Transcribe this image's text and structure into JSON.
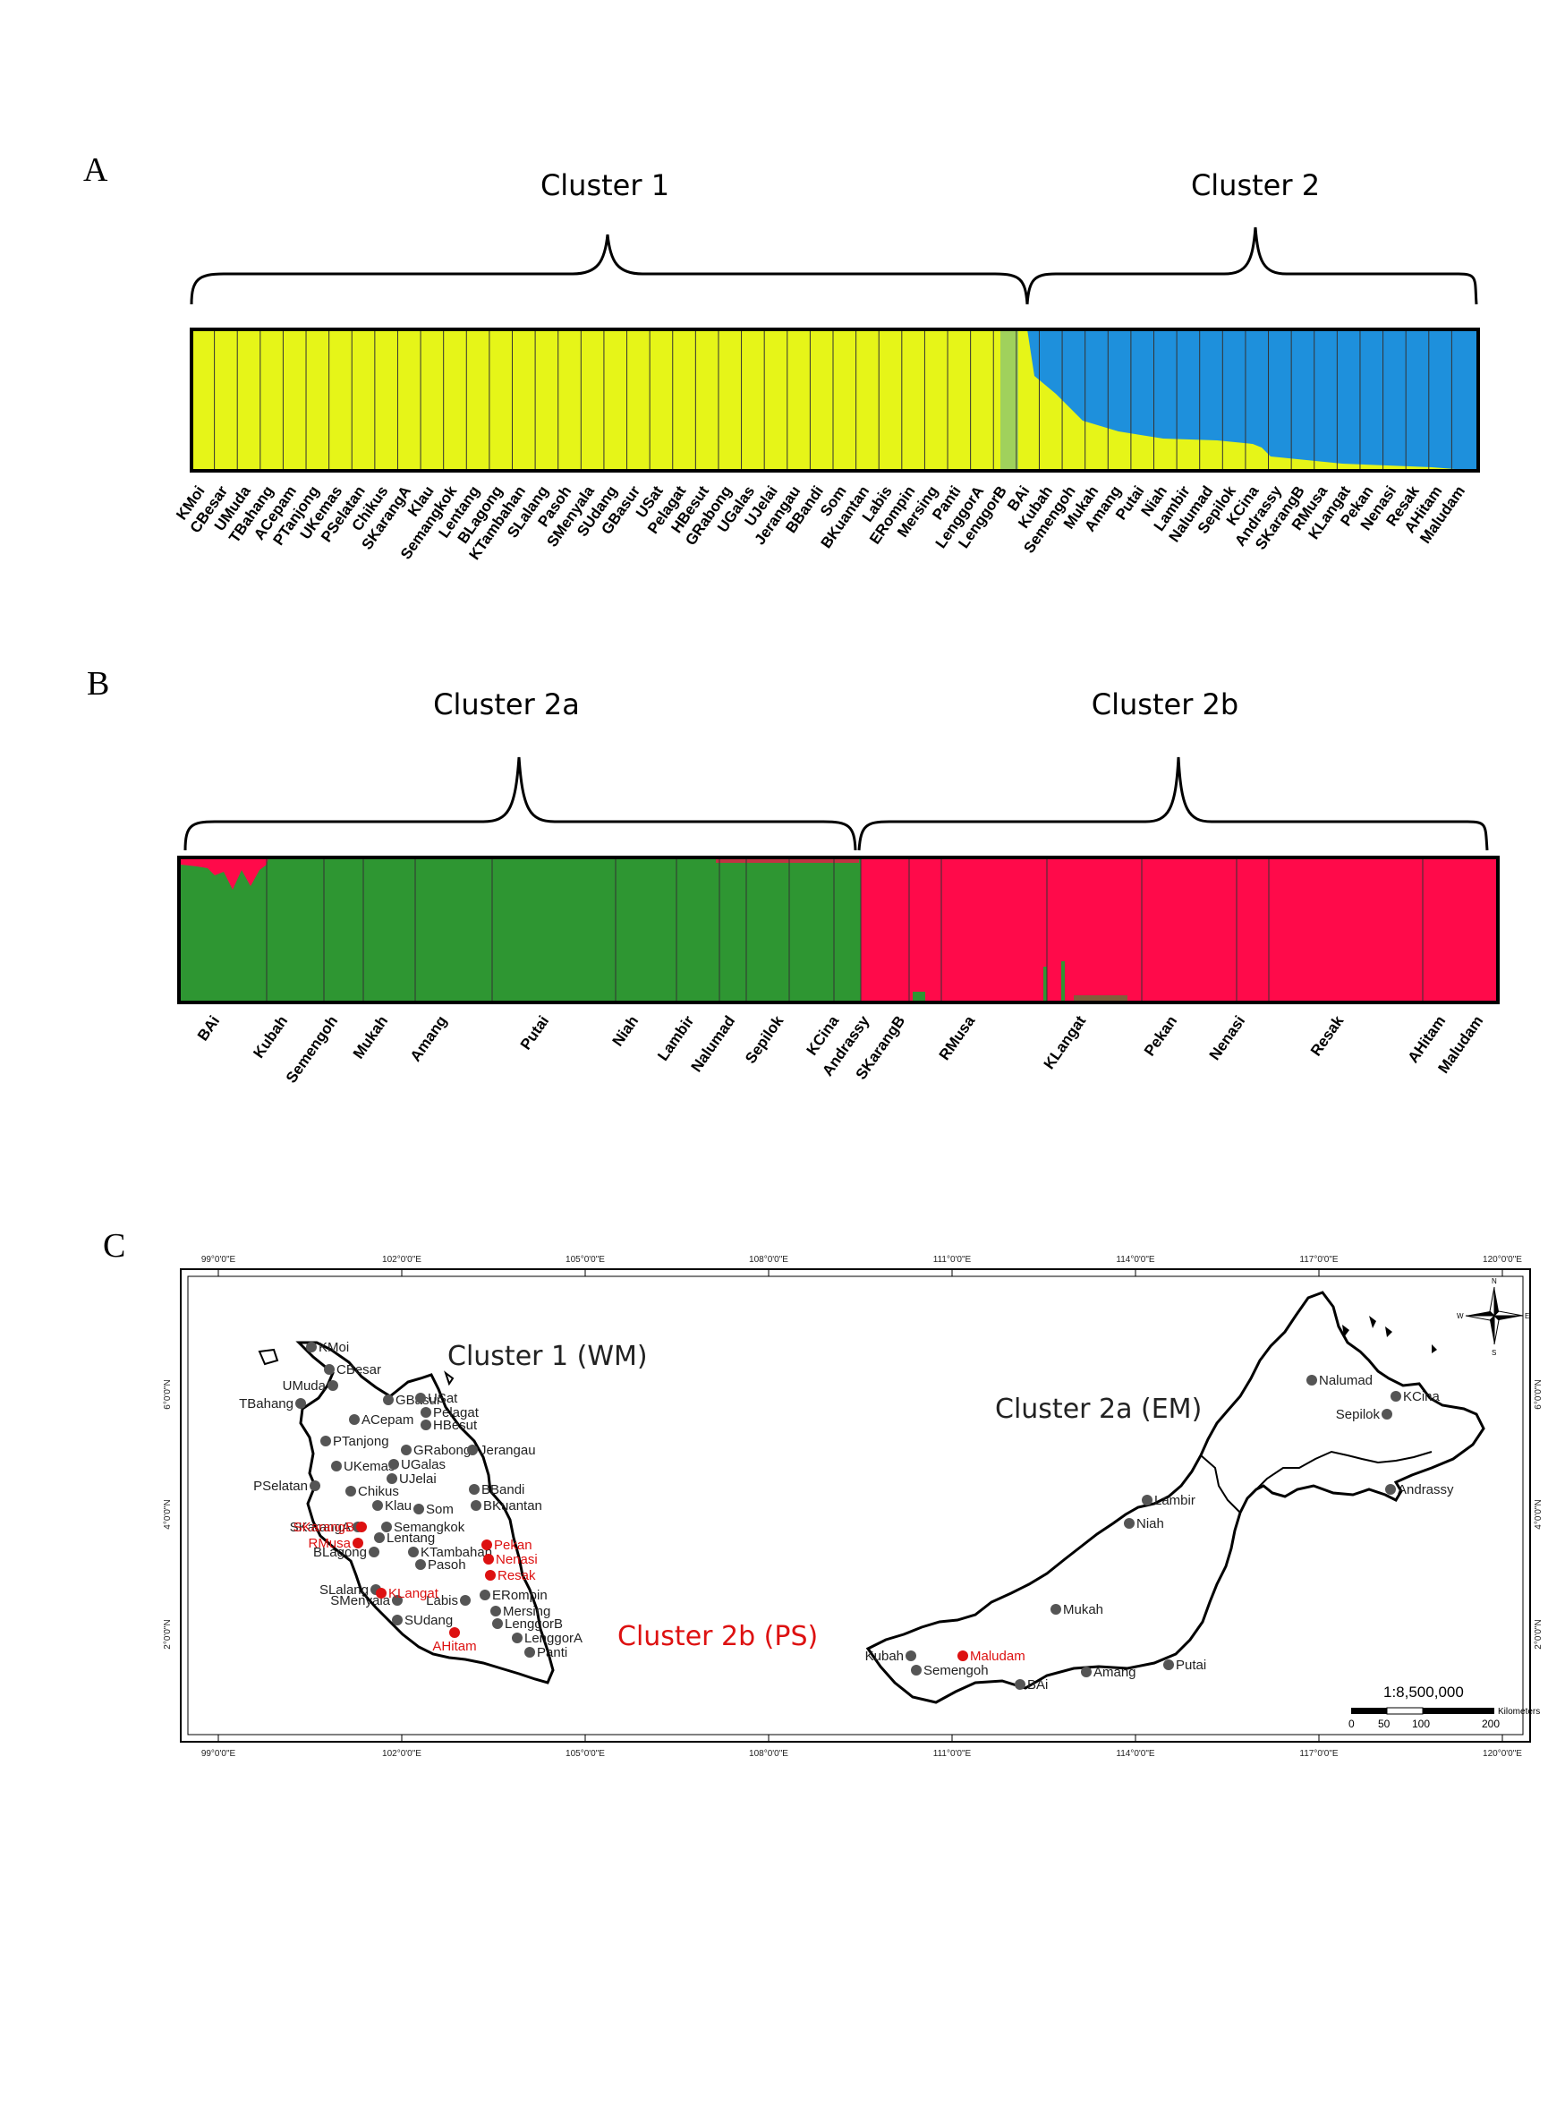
{
  "panels": {
    "a": {
      "letter": "A",
      "left_title": "Cluster 1",
      "right_title": "Cluster 2",
      "colors": {
        "cluster1": "#e6f518",
        "cluster2": "#1e90dc"
      },
      "populations": [
        "KMoi",
        "CBesar",
        "UMuda",
        "TBahang",
        "ACepam",
        "PTanjong",
        "UKemas",
        "PSelatan",
        "Chikus",
        "SKarangA",
        "Klau",
        "Semangkok",
        "Lentang",
        "BLagong",
        "KTambahan",
        "SLalang",
        "Pasoh",
        "SMenyala",
        "SUdang",
        "GBasur",
        "USat",
        "Pelagat",
        "HBesut",
        "GRabong",
        "UGalas",
        "UJelai",
        "Jerangau",
        "BBandi",
        "Som",
        "BKuantan",
        "Labis",
        "ERompin",
        "Mersing",
        "Panti",
        "LenggorA",
        "LenggorB",
        "BAi",
        "Kubah",
        "Semengoh",
        "Mukah",
        "Amang",
        "Putai",
        "Niah",
        "Lambir",
        "Nalumad",
        "Sepilok",
        "KCina",
        "Andrassy",
        "SKarangB",
        "RMusa",
        "KLangat",
        "Pekan",
        "Nenasi",
        "Resak",
        "AHitam",
        "Maludam"
      ]
    },
    "b": {
      "letter": "B",
      "left_title": "Cluster 2a",
      "right_title": "Cluster 2b",
      "colors": {
        "cluster2a": "#2e9632",
        "cluster2b": "#ff0a4a"
      },
      "populations": [
        "BAi",
        "Kubah",
        "Semengoh",
        "Mukah",
        "Amang",
        "Putai",
        "Niah",
        "Lambir",
        "Nalumad",
        "Sepilok",
        "KCina",
        "Andrassy",
        "SKarangB",
        "RMusa",
        "KLangat",
        "Pekan",
        "Nenasi",
        "Resak",
        "AHitam",
        "Maludam"
      ]
    },
    "c": {
      "letter": "C",
      "label_wm": "Cluster 1 (WM)",
      "label_em": "Cluster 2a (EM)",
      "label_ps": "Cluster 2b (PS)",
      "scale_text": "1:8,500,000",
      "scale_ticks": [
        "0",
        "50",
        "100",
        "200"
      ],
      "scale_unit": "Kilometers",
      "lon_ticks": [
        "99°0'0\"E",
        "102°0'0\"E",
        "105°0'0\"E",
        "108°0'0\"E",
        "111°0'0\"E",
        "114°0'0\"E",
        "117°0'0\"E",
        "120°0'0\"E"
      ],
      "lat_ticks": [
        "6°0'0\"N",
        "4°0'0\"N",
        "2°0'0\"N"
      ],
      "compass": {
        "n": "N",
        "e": "E",
        "s": "S",
        "w": "W"
      },
      "site_colors": {
        "grey": "#555555",
        "red": "#dd1111"
      },
      "sites_wm": [
        "KMoi",
        "CBesar",
        "UMuda",
        "TBahang",
        "GBasur",
        "USat",
        "Pelagat",
        "HBesut",
        "ACepam",
        "PTanjong",
        "GRabong",
        "Jerangau",
        "UKemas",
        "UGalas",
        "UJelai",
        "PSelatan",
        "Chikus",
        "BBandi",
        "BKuantan",
        "Klau",
        "Som",
        "SKarangA",
        "Semangkok",
        "Lentang",
        "BLagong",
        "KTambahan",
        "Pasoh",
        "SLalang",
        "SMenyala",
        "Labis",
        "ERompin",
        "Mersing",
        "LenggorB",
        "SUdang",
        "LenggorA",
        "Panti"
      ],
      "sites_ps": [
        "SKarangB",
        "RMusa",
        "Pekan",
        "Nenasi",
        "Resak",
        "KLangat",
        "AHitam",
        "Maludam"
      ],
      "sites_em": [
        "Nalumad",
        "KCina",
        "Sepilok",
        "Andrassy",
        "Lambir",
        "Niah",
        "Mukah",
        "Kubah",
        "Semengoh",
        "BAi",
        "Amang",
        "Putai"
      ]
    }
  }
}
